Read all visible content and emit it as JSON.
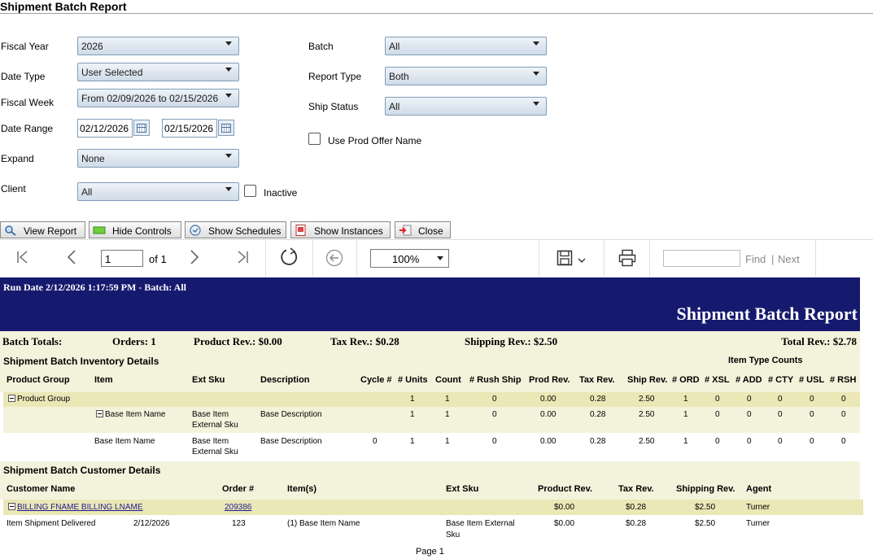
{
  "window": {
    "title": "Shipment Batch Report"
  },
  "filters": {
    "fiscal_year": {
      "label": "Fiscal Year",
      "value": "2026"
    },
    "date_type": {
      "label": "Date Type",
      "value": "User Selected"
    },
    "fiscal_week": {
      "label": "Fiscal Week",
      "value": "From 02/09/2026 to 02/15/2026"
    },
    "date_range": {
      "label": "Date Range",
      "from": "02/12/2026",
      "to": "02/15/2026"
    },
    "expand": {
      "label": "Expand",
      "value": "None"
    },
    "client": {
      "label": "Client",
      "value": "All",
      "inactive_label": "Inactive"
    },
    "batch": {
      "label": "Batch",
      "value": "All"
    },
    "report_type": {
      "label": "Report Type",
      "value": "Both"
    },
    "ship_status": {
      "label": "Ship Status",
      "value": "All"
    },
    "use_prod_offer": {
      "label": "Use Prod Offer Name"
    }
  },
  "actions": {
    "view_report": "View Report",
    "hide_controls": "Hide Controls",
    "show_schedules": "Show Schedules",
    "show_instances": "Show Instances",
    "close": "Close"
  },
  "viewer": {
    "page": "1",
    "of_pages": "of 1",
    "zoom": "100%",
    "find": "Find",
    "next": "Next"
  },
  "report": {
    "run_date": "Run Date 2/12/2026 1:17:59 PM - Batch: All",
    "title": "Shipment Batch Report",
    "totals": {
      "label": "Batch Totals:",
      "orders": "Orders: 1",
      "product_rev": "Product Rev.: $0.00",
      "tax_rev": "Tax Rev.: $0.28",
      "shipping_rev": "Shipping Rev.: $2.50",
      "total_rev": "Total Rev.: $2.78"
    },
    "inventory": {
      "section_title": "Shipment Batch Inventory Details",
      "item_type_counts": "Item Type Counts",
      "columns": [
        "Product Group",
        "Item",
        "Ext Sku",
        "Description",
        "Cycle #",
        "# Units",
        "Count",
        "# Rush Ship",
        "Prod Rev.",
        "Tax Rev.",
        "Ship Rev.",
        "# ORD",
        "# XSL",
        "# ADD",
        "# CTY",
        "# USL",
        "# RSH"
      ],
      "group_row": {
        "group": "Product Group",
        "units": "1",
        "count": "1",
        "rush": "0",
        "prod": "0.00",
        "tax": "0.28",
        "ship": "2.50",
        "ord": "1",
        "xsl": "0",
        "add": "0",
        "cty": "0",
        "usl": "0",
        "rsh": "0"
      },
      "item_row": {
        "item": "Base Item Name",
        "ext_sku_1": "Base Item",
        "ext_sku_2": "External Sku",
        "description": "Base Description",
        "units": "1",
        "count": "1",
        "rush": "0",
        "prod": "0.00",
        "tax": "0.28",
        "ship": "2.50",
        "ord": "1",
        "xsl": "0",
        "add": "0",
        "cty": "0",
        "usl": "0",
        "rsh": "0"
      },
      "detail_row": {
        "item": "Base Item Name",
        "ext_sku_1": "Base Item",
        "ext_sku_2": "External Sku",
        "description": "Base Description",
        "cycle": "0",
        "units": "1",
        "count": "1",
        "rush": "0",
        "prod": "0.00",
        "tax": "0.28",
        "ship": "2.50",
        "ord": "1",
        "xsl": "0",
        "add": "0",
        "cty": "0",
        "usl": "0",
        "rsh": "0"
      }
    },
    "customers": {
      "section_title": "Shipment Batch Customer Details",
      "columns": [
        "Customer Name",
        "Order #",
        "Item(s)",
        "Ext Sku",
        "Product Rev.",
        "Tax Rev.",
        "Shipping Rev.",
        "Agent"
      ],
      "group_row": {
        "name": "BILLING FNAME BILLING LNAME",
        "order": "209386",
        "product": "$0.00",
        "tax": "$0.28",
        "shipping": "$2.50",
        "agent": "Turner"
      },
      "detail_row": {
        "status": "Item Shipment Delivered",
        "date": "2/12/2026",
        "order": "123",
        "items": "(1) Base Item Name",
        "ext_sku_1": "Base Item External",
        "ext_sku_2": "Sku",
        "product": "$0.00",
        "tax": "$0.28",
        "shipping": "$2.50",
        "agent": "Turner"
      }
    },
    "footer": "Page 1"
  }
}
